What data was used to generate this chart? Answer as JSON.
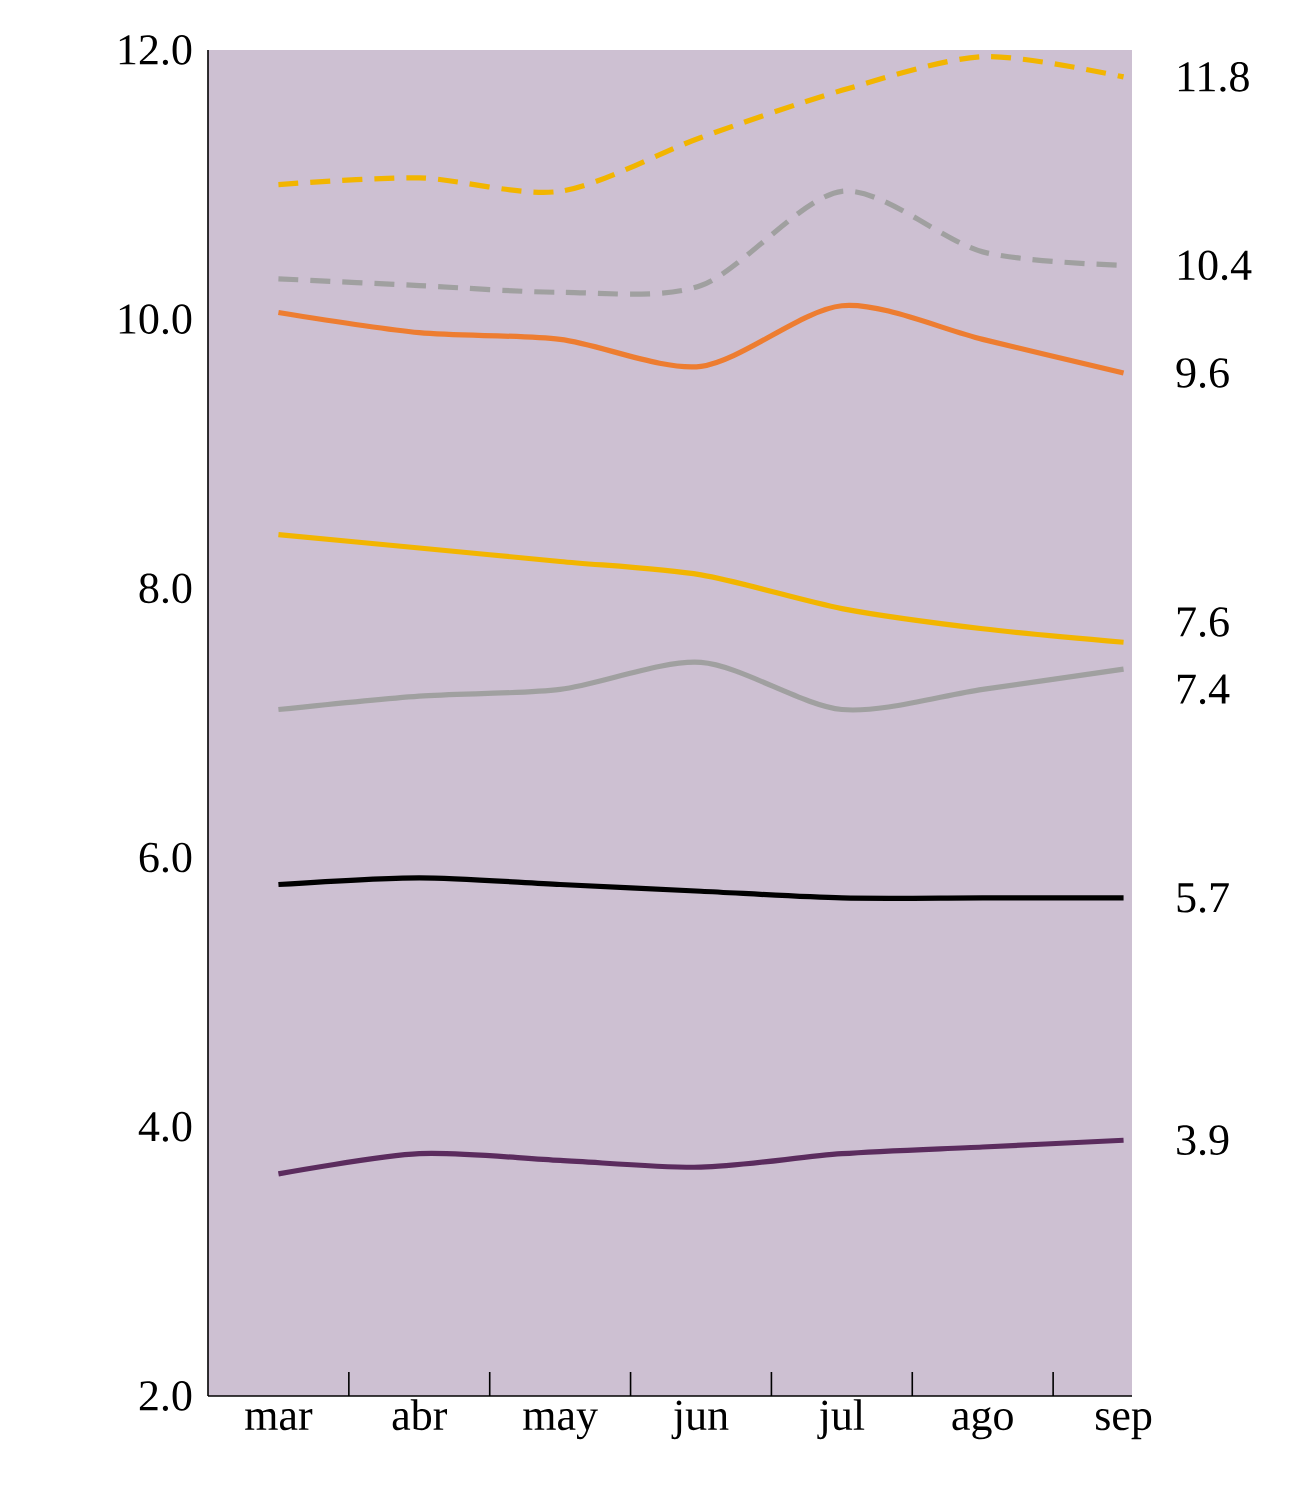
{
  "chart_data": {
    "type": "line",
    "categories": [
      "mar",
      "abr",
      "may",
      "jun",
      "jul",
      "ago",
      "sep"
    ],
    "ylim": [
      2,
      12
    ],
    "yticks": [
      {
        "value": 2,
        "label": "2.0"
      },
      {
        "value": 4,
        "label": "4.0"
      },
      {
        "value": 6,
        "label": "6.0"
      },
      {
        "value": 8,
        "label": "8.0"
      },
      {
        "value": 10,
        "label": "10.0"
      },
      {
        "value": 12,
        "label": "12.0"
      }
    ],
    "grid": false,
    "marker": "none",
    "series": [
      {
        "color": "#f2b500",
        "line_style": "dashed",
        "values": [
          11.0,
          11.05,
          10.95,
          11.35,
          11.7,
          11.95,
          11.8
        ],
        "value_labels": [
          null,
          null,
          null,
          null,
          null,
          null,
          "11.8"
        ]
      },
      {
        "color": "#a0a0a0",
        "line_style": "dashed",
        "values": [
          10.3,
          10.25,
          10.2,
          10.25,
          10.95,
          10.5,
          10.4
        ],
        "value_labels": [
          null,
          null,
          null,
          null,
          null,
          null,
          "10.4"
        ]
      },
      {
        "color": "#ed7d31",
        "line_style": "solid",
        "values": [
          10.05,
          9.9,
          9.85,
          9.65,
          10.1,
          9.85,
          9.6
        ],
        "value_labels": [
          null,
          null,
          null,
          null,
          null,
          null,
          "9.6"
        ]
      },
      {
        "color": "#f2b500",
        "line_style": "solid",
        "values": [
          8.4,
          8.3,
          8.2,
          8.1,
          7.85,
          7.7,
          7.6
        ],
        "value_labels": [
          null,
          null,
          null,
          null,
          null,
          null,
          "7.6"
        ]
      },
      {
        "color": "#a0a0a0",
        "line_style": "solid",
        "values": [
          7.1,
          7.2,
          7.25,
          7.45,
          7.1,
          7.25,
          7.4
        ],
        "value_labels": [
          null,
          null,
          null,
          null,
          null,
          null,
          "7.4"
        ]
      },
      {
        "color": "#000000",
        "line_style": "solid",
        "values": [
          5.8,
          5.85,
          5.8,
          5.75,
          5.7,
          5.7,
          5.7
        ],
        "value_labels": [
          null,
          null,
          null,
          null,
          null,
          null,
          "5.7"
        ]
      },
      {
        "color": "#5b2c5e",
        "line_style": "solid",
        "values": [
          3.65,
          3.8,
          3.75,
          3.7,
          3.8,
          3.85,
          3.9
        ],
        "value_labels": [
          null,
          null,
          null,
          null,
          null,
          null,
          "3.9"
        ]
      }
    ]
  }
}
